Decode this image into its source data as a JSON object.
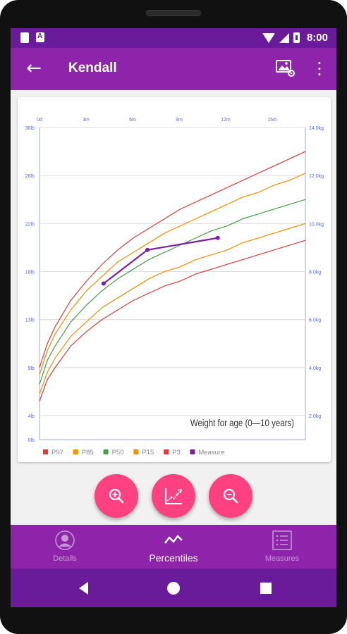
{
  "status_bar": {
    "time": "8:00"
  },
  "app_bar": {
    "title": "Kendall",
    "back_icon": "arrow-back-icon",
    "image_icon": "image-settings-icon",
    "more_icon": "more-vert-icon"
  },
  "chart_data": {
    "type": "line",
    "title": "Weight for age (0—10 years)",
    "x_top_ticks": [
      "0d",
      "3m",
      "6m",
      "9m",
      "12m",
      "15m"
    ],
    "y_left_ticks": [
      "30lb",
      "26lb",
      "22lb",
      "18lb",
      "13lb",
      "9lb",
      "4lb",
      "0lb"
    ],
    "y_right_ticks": [
      "14.0kg",
      "12.0kg",
      "10.0kg",
      "8.0kg",
      "6.0kg",
      "4.0kg",
      "2.0kg"
    ],
    "xlim": [
      0,
      17
    ],
    "ylim_kg": [
      1.0,
      14.0
    ],
    "grid": true,
    "legend_placement": "bottom",
    "series": [
      {
        "name": "P97",
        "color": "#e53935",
        "x": [
          0,
          0.5,
          1,
          2,
          3,
          4,
          5,
          6,
          7,
          8,
          9,
          10,
          11,
          12,
          13,
          14,
          15,
          16,
          17
        ],
        "y": [
          4.0,
          5.0,
          5.7,
          6.8,
          7.6,
          8.3,
          8.9,
          9.4,
          9.8,
          10.2,
          10.6,
          10.9,
          11.2,
          11.5,
          11.8,
          12.1,
          12.4,
          12.7,
          13.0
        ]
      },
      {
        "name": "P85",
        "color": "#fb8c00",
        "x": [
          0,
          0.5,
          1,
          2,
          3,
          4,
          5,
          6,
          7,
          8,
          9,
          10,
          11,
          12,
          13,
          14,
          15,
          16,
          17
        ],
        "y": [
          3.7,
          4.7,
          5.4,
          6.4,
          7.2,
          7.8,
          8.4,
          8.8,
          9.2,
          9.6,
          9.9,
          10.2,
          10.5,
          10.8,
          11.1,
          11.3,
          11.6,
          11.8,
          12.1
        ]
      },
      {
        "name": "P50",
        "color": "#43a047",
        "x": [
          0,
          0.5,
          1,
          2,
          3,
          4,
          5,
          6,
          7,
          8,
          9,
          10,
          11,
          12,
          13,
          14,
          15,
          16,
          17
        ],
        "y": [
          3.3,
          4.3,
          4.9,
          5.9,
          6.6,
          7.2,
          7.7,
          8.1,
          8.5,
          8.8,
          9.1,
          9.4,
          9.7,
          9.9,
          10.2,
          10.4,
          10.6,
          10.8,
          11.0
        ]
      },
      {
        "name": "P15",
        "color": "#fb8c00",
        "x": [
          0,
          0.5,
          1,
          2,
          3,
          4,
          5,
          6,
          7,
          8,
          9,
          10,
          11,
          12,
          13,
          14,
          15,
          16,
          17
        ],
        "y": [
          2.9,
          3.8,
          4.4,
          5.3,
          5.9,
          6.5,
          6.9,
          7.3,
          7.7,
          8.0,
          8.2,
          8.5,
          8.7,
          8.9,
          9.2,
          9.4,
          9.6,
          9.8,
          10.0
        ]
      },
      {
        "name": "P3",
        "color": "#e53935",
        "x": [
          0,
          0.5,
          1,
          2,
          3,
          4,
          5,
          6,
          7,
          8,
          9,
          10,
          11,
          12,
          13,
          14,
          15,
          16,
          17
        ],
        "y": [
          2.6,
          3.5,
          4.0,
          4.9,
          5.5,
          6.0,
          6.4,
          6.8,
          7.1,
          7.4,
          7.6,
          7.9,
          8.1,
          8.3,
          8.5,
          8.7,
          8.9,
          9.1,
          9.3
        ]
      },
      {
        "name": "Measure",
        "color": "#7b1fa2",
        "x": [
          4.1,
          6.9,
          11.4
        ],
        "y": [
          7.5,
          8.9,
          9.4
        ]
      }
    ]
  },
  "fabs": {
    "zoom_in_icon": "zoom-in-icon",
    "chart_icon": "chart-trend-icon",
    "zoom_out_icon": "zoom-out-icon"
  },
  "bottom_nav": {
    "items": [
      {
        "label": "Details",
        "icon": "person-icon"
      },
      {
        "label": "Percentiles",
        "icon": "trend-icon"
      },
      {
        "label": "Measures",
        "icon": "list-icon"
      }
    ]
  },
  "colors": {
    "primary": "#8e24aa",
    "primary_dark": "#6a1b9a",
    "accent": "#ff4081"
  }
}
